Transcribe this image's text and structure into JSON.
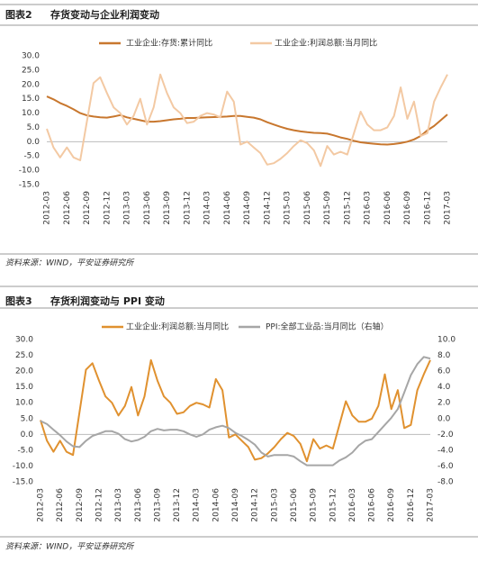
{
  "chart_data": [
    {
      "type": "line",
      "label": "图表2",
      "title": "存货变动与企业利润变动",
      "source": "资料来源：WIND，平安证券研究所",
      "categories": [
        "2012-03",
        null,
        null,
        "2012-06",
        null,
        null,
        "2012-09",
        null,
        null,
        "2012-12",
        null,
        null,
        "2013-03",
        null,
        null,
        "2013-06",
        null,
        null,
        "2013-09",
        null,
        null,
        "2013-12",
        null,
        null,
        "2014-03",
        null,
        null,
        "2014-06",
        null,
        null,
        "2014-09",
        null,
        null,
        "2014-12",
        null,
        null,
        "2015-03",
        null,
        null,
        "2015-06",
        null,
        null,
        "2015-09",
        null,
        null,
        "2015-12",
        null,
        null,
        "2016-03",
        null,
        null,
        "2016-06",
        null,
        null,
        "2016-09",
        null,
        null,
        "2016-12",
        null,
        null,
        "2017-03"
      ],
      "series": [
        {
          "name": "工业企业:存货:累计同比",
          "color": "#c8772e",
          "values": [
            15.8,
            14.8,
            13.5,
            12.5,
            11.3,
            10,
            9.2,
            8.8,
            8.5,
            8.4,
            8.8,
            9.3,
            8.5,
            8,
            7.5,
            7,
            7,
            7.2,
            7.5,
            7.8,
            8,
            8.3,
            8.3,
            8.4,
            8.5,
            8.6,
            8.7,
            8.8,
            9,
            9,
            8.7,
            8.4,
            7.8,
            6.8,
            6,
            5.2,
            4.5,
            4,
            3.6,
            3.3,
            3.1,
            3,
            2.8,
            2.2,
            1.5,
            1,
            0.3,
            -0.2,
            -0.5,
            -0.7,
            -0.9,
            -1,
            -0.8,
            -0.5,
            0,
            0.8,
            2,
            4,
            5.5,
            7.5,
            9.5
          ]
        },
        {
          "name": "工业企业:利润总额:当月同比",
          "color": "#f3c9a3",
          "values": [
            4.5,
            -2,
            -5.5,
            -2,
            -5.5,
            -6.5,
            7,
            20.5,
            22.5,
            17,
            12,
            10,
            6,
            9,
            15,
            6,
            12,
            23.5,
            17,
            12,
            10,
            6.5,
            7,
            9,
            10,
            9.5,
            8.5,
            17.5,
            14,
            -1,
            0,
            -2,
            -4,
            -8,
            -7.5,
            -6,
            -4,
            -1.5,
            0.5,
            -0.5,
            -3,
            -8.5,
            -1.5,
            -4.5,
            -3.5,
            -4.5,
            3,
            10.5,
            6,
            4,
            4,
            5,
            9,
            19,
            8,
            14,
            2,
            3,
            14,
            19,
            23.5
          ]
        }
      ],
      "ylim": [
        -15,
        30
      ],
      "yticks": [
        {
          "value": -15,
          "label": "-15.0"
        },
        {
          "value": -10,
          "label": "-10.0"
        },
        {
          "value": -5,
          "label": "-5.0"
        },
        {
          "value": 0,
          "label": "0.0"
        },
        {
          "value": 5,
          "label": "5.0"
        },
        {
          "value": 10,
          "label": "10.0"
        },
        {
          "value": 15,
          "label": "15.0"
        },
        {
          "value": 20,
          "label": "20.0"
        },
        {
          "value": 25,
          "label": "25.0"
        },
        {
          "value": 30,
          "label": "30.0"
        }
      ]
    },
    {
      "type": "line",
      "label": "图表3",
      "title": "存货利润变动与 PPI 变动",
      "source": "资料来源：WIND，平安证券研究所",
      "categories": [
        "2012-03",
        null,
        null,
        "2012-06",
        null,
        null,
        "2012-09",
        null,
        null,
        "2012-12",
        null,
        null,
        "2013-03",
        null,
        null,
        "2013-06",
        null,
        null,
        "2013-09",
        null,
        null,
        "2013-12",
        null,
        null,
        "2014-03",
        null,
        null,
        "2014-06",
        null,
        null,
        "2014-09",
        null,
        null,
        "2014-12",
        null,
        null,
        "2015-03",
        null,
        null,
        "2015-06",
        null,
        null,
        "2015-09",
        null,
        null,
        "2015-12",
        null,
        null,
        "2016-03",
        null,
        null,
        "2016-06",
        null,
        null,
        "2016-09",
        null,
        null,
        "2016-12",
        null,
        null,
        "2017-03"
      ],
      "series": [
        {
          "name": "工业企业:利润总额:当月同比",
          "color": "#e0912f",
          "values": [
            4.5,
            -2,
            -5.5,
            -2,
            -5.5,
            -6.5,
            7,
            20.5,
            22.5,
            17,
            12,
            10,
            6,
            9,
            15,
            6,
            12,
            23.5,
            17,
            12,
            10,
            6.5,
            7,
            9,
            10,
            9.5,
            8.5,
            17.5,
            14,
            -1,
            0,
            -2,
            -4,
            -8,
            -7.5,
            -6,
            -4,
            -1.5,
            0.5,
            -0.5,
            -3,
            -8.5,
            -1.5,
            -4.5,
            -3.5,
            -4.5,
            3,
            10.5,
            6,
            4,
            4,
            5,
            9,
            19,
            8,
            14,
            2,
            3,
            14,
            19,
            23.5
          ]
        },
        {
          "name": "PPI:全部工业品:当月同比（右轴）",
          "color": "#a6a6a6",
          "axis": "y2",
          "values": [
            -0.3,
            -0.7,
            -1.4,
            -2.1,
            -2.9,
            -3.5,
            -3.6,
            -2.8,
            -2.2,
            -1.9,
            -1.6,
            -1.6,
            -1.9,
            -2.6,
            -2.9,
            -2.7,
            -2.3,
            -1.6,
            -1.3,
            -1.5,
            -1.4,
            -1.4,
            -1.6,
            -2,
            -2.3,
            -2,
            -1.4,
            -1.1,
            -0.9,
            -1.2,
            -1.8,
            -2.2,
            -2.7,
            -3.3,
            -4.3,
            -4.8,
            -4.6,
            -4.6,
            -4.6,
            -4.8,
            -5.4,
            -5.9,
            -5.9,
            -5.9,
            -5.9,
            -5.9,
            -5.3,
            -4.9,
            -4.3,
            -3.4,
            -2.8,
            -2.6,
            -1.7,
            -0.8,
            0.1,
            1.2,
            3.3,
            5.5,
            6.9,
            7.8,
            7.6
          ]
        }
      ],
      "ylim": [
        -15,
        30
      ],
      "yticks": [
        {
          "value": -15,
          "label": "-15.0"
        },
        {
          "value": -10,
          "label": "-10.0"
        },
        {
          "value": -5,
          "label": "-5.0"
        },
        {
          "value": 0,
          "label": "0.0"
        },
        {
          "value": 5,
          "label": "5.0"
        },
        {
          "value": 10,
          "label": "10.0"
        },
        {
          "value": 15,
          "label": "15.0"
        },
        {
          "value": 20,
          "label": "20.0"
        },
        {
          "value": 25,
          "label": "25.0"
        },
        {
          "value": 30,
          "label": "30.0"
        }
      ],
      "y2lim": [
        -8,
        10
      ],
      "y2ticks": [
        {
          "value": -8,
          "label": "-8.0"
        },
        {
          "value": -6,
          "label": "-6.0"
        },
        {
          "value": -4,
          "label": "-4.0"
        },
        {
          "value": -2,
          "label": "-2.0"
        },
        {
          "value": 0,
          "label": "0.0"
        },
        {
          "value": 2,
          "label": "2.0"
        },
        {
          "value": 4,
          "label": "4.0"
        },
        {
          "value": 6,
          "label": "6.0"
        },
        {
          "value": 8,
          "label": "8.0"
        },
        {
          "value": 10,
          "label": "10.0"
        }
      ]
    }
  ]
}
